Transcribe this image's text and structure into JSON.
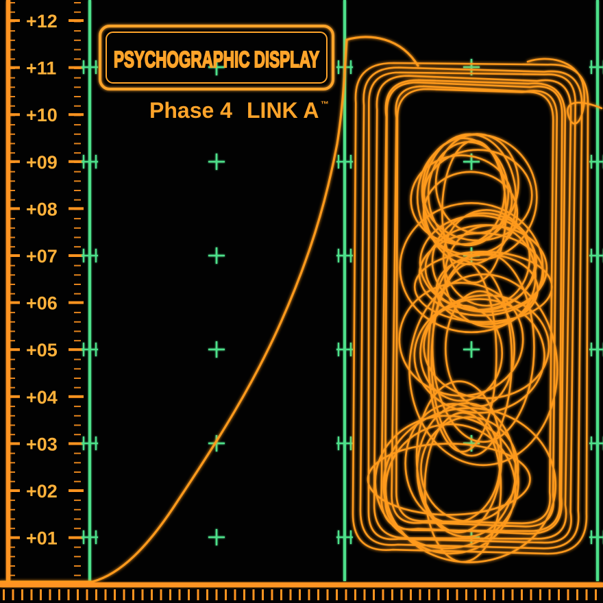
{
  "display": {
    "title": "PSYCHOGRAPHIC DISPLAY",
    "phase": "Phase 4",
    "link": "LINK A",
    "trademark": "™"
  },
  "scale": {
    "labels": [
      "+12",
      "+11",
      "+10",
      "+09",
      "+08",
      "+07",
      "+06",
      "+05",
      "+04",
      "+03",
      "+02",
      "+01"
    ]
  },
  "colors": {
    "trace": "#ff9a1c",
    "trace_glow": "#ff7a00",
    "grid": "#4ee08a",
    "background": "#020202",
    "ruler": "#ff9420"
  }
}
